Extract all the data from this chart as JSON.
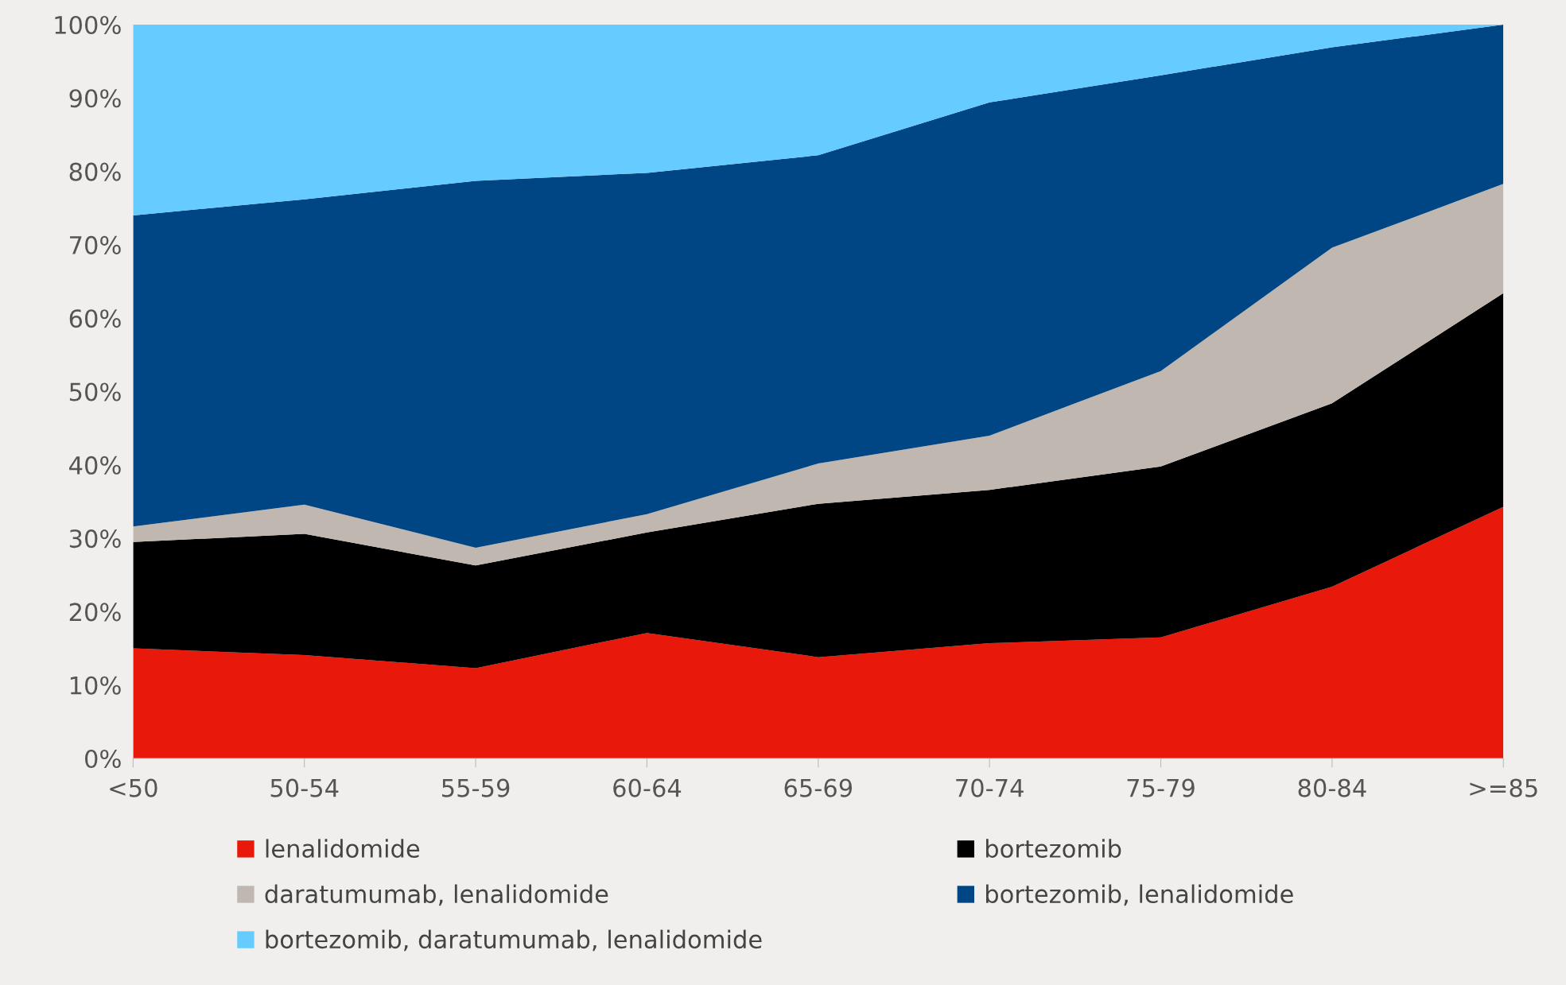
{
  "chart_data": {
    "type": "area",
    "stacked": true,
    "categories": [
      "<50",
      "50-54",
      "55-59",
      "60-64",
      "65-69",
      "70-74",
      "75-79",
      "80-84",
      ">=85"
    ],
    "series": [
      {
        "name": "lenalidomide",
        "color": "#e8190a",
        "values": [
          15.0,
          14.1,
          12.3,
          17.1,
          13.8,
          15.7,
          16.5,
          23.4,
          34.3
        ]
      },
      {
        "name": "bortezomib",
        "color": "#000000",
        "values": [
          14.5,
          16.5,
          14.0,
          13.7,
          20.9,
          20.9,
          23.3,
          25.0,
          29.1
        ]
      },
      {
        "name": "daratumumab, lenalidomide",
        "color": "#c0b8b0",
        "values": [
          2.1,
          4.0,
          2.4,
          2.5,
          5.5,
          7.4,
          13.0,
          21.2,
          14.9
        ]
      },
      {
        "name": "bortezomib, lenalidomide",
        "color": "#004685",
        "values": [
          42.4,
          41.6,
          50.0,
          46.5,
          42.0,
          45.4,
          40.3,
          27.3,
          21.7
        ]
      },
      {
        "name": "bortezomib, daratumumab, lenalidomide",
        "color": "#66ccff",
        "values": [
          26.0,
          23.8,
          21.3,
          20.2,
          17.8,
          10.6,
          6.9,
          3.1,
          0.0
        ]
      }
    ],
    "ylim": [
      0,
      100
    ],
    "yticks": [
      {
        "value": 0,
        "label": "0%"
      },
      {
        "value": 10,
        "label": "10%"
      },
      {
        "value": 20,
        "label": "20%"
      },
      {
        "value": 30,
        "label": "30%"
      },
      {
        "value": 40,
        "label": "40%"
      },
      {
        "value": 50,
        "label": "50%"
      },
      {
        "value": 60,
        "label": "60%"
      },
      {
        "value": 70,
        "label": "70%"
      },
      {
        "value": 80,
        "label": "80%"
      },
      {
        "value": 90,
        "label": "90%"
      },
      {
        "value": 100,
        "label": "100%"
      }
    ],
    "grid": false,
    "legend": "bottom"
  }
}
